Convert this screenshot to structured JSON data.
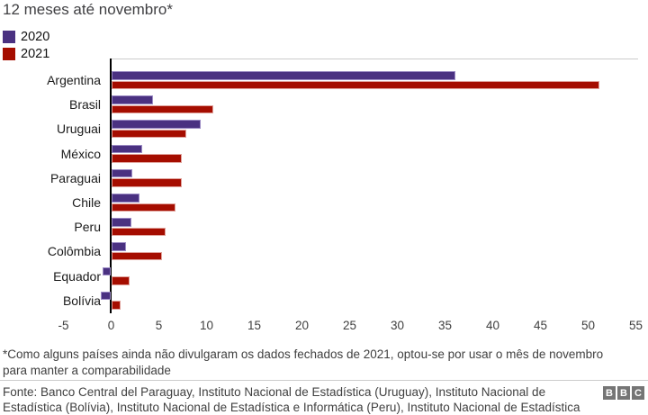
{
  "title": "12 meses até novembro*",
  "legend": {
    "items": [
      {
        "label": "2020",
        "color": "#4a3181",
        "edge": "#9b8bc4"
      },
      {
        "label": "2021",
        "color": "#a50d00",
        "edge": "#e0a29b"
      }
    ]
  },
  "chart_data": {
    "type": "bar",
    "orientation": "horizontal",
    "title": "12 meses até novembro*",
    "categories": [
      "Argentina",
      "Brasil",
      "Uruguai",
      "México",
      "Paraguai",
      "Chile",
      "Peru",
      "Colômbia",
      "Equador",
      "Bolívia"
    ],
    "series": [
      {
        "name": "2020",
        "color": "#4a3181",
        "edge": "#9b8bc4",
        "values": [
          36.1,
          4.4,
          9.4,
          3.3,
          2.2,
          3.0,
          2.1,
          1.6,
          -0.9,
          -1.1
        ]
      },
      {
        "name": "2021",
        "color": "#a50d00",
        "edge": "#e0a29b",
        "values": [
          51.2,
          10.7,
          7.9,
          7.4,
          7.4,
          6.7,
          5.7,
          5.3,
          1.9,
          1.0
        ]
      }
    ],
    "xlabel": "",
    "ylabel": "",
    "xlim": [
      -5,
      55
    ],
    "xticks": [
      -5,
      0,
      5,
      10,
      15,
      20,
      25,
      30,
      35,
      40,
      45,
      50,
      55
    ],
    "xtick_labels": [
      "-5",
      "0",
      "5",
      "10",
      "15",
      "20",
      "25",
      "30",
      "35",
      "40",
      "45",
      "50",
      "55"
    ],
    "grid": false,
    "legend_position": "top-left"
  },
  "footnote": {
    "line1": "*Como alguns países ainda não divulgaram os dados fechados de 2021, optou-se por usar o mês de novembro",
    "line2": "para manter a comparabilidade"
  },
  "source": {
    "line1": "Fonte: Banco Central del Paraguay, Instituto Nacional de Estadística (Uruguay), Instituto Nacional de",
    "line2": "Estadística (Bolívia), Instituto Nacional de Estadística e Informática (Peru), Instituto Nacional de Estadística"
  },
  "logo": {
    "blocks": [
      "B",
      "B",
      "C"
    ],
    "block_color": "#757575"
  },
  "colors": {
    "title_text": "#3f3f42",
    "axis_line": "#000000",
    "plot_border": "#cccccc",
    "gray_text": "#404040",
    "category_text": "#1a1a1a"
  }
}
